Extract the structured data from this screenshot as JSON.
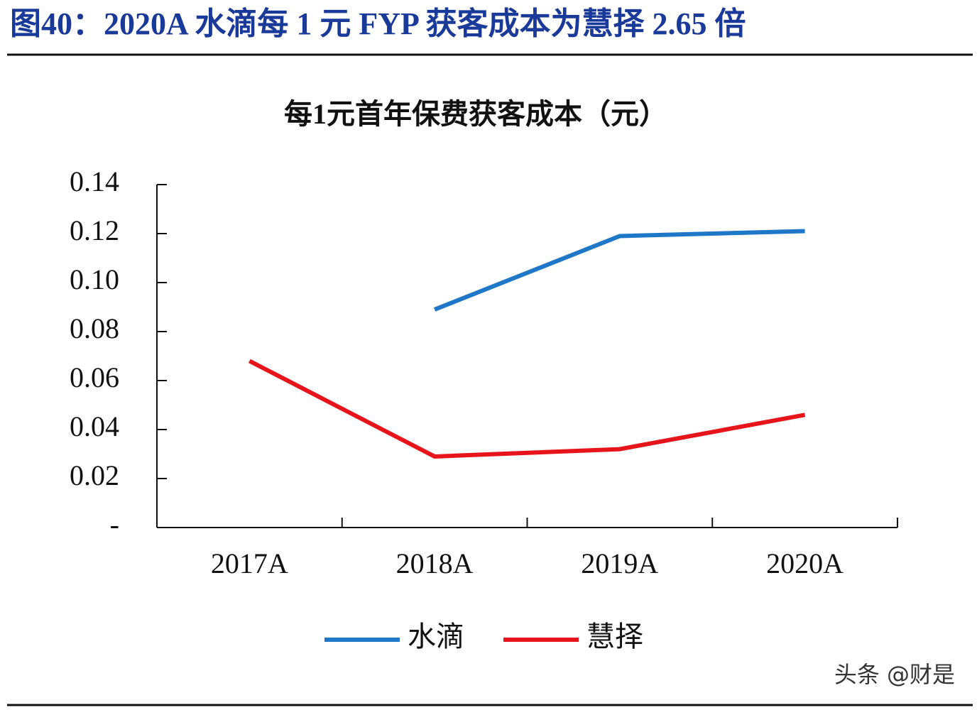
{
  "header": {
    "title": "图40：2020A 水滴每 1 元 FYP 获客成本为慧择 2.65 倍"
  },
  "chart_data": {
    "type": "line",
    "title": "每1元首年保费获客成本（元）",
    "categories": [
      "2017A",
      "2018A",
      "2019A",
      "2020A"
    ],
    "series": [
      {
        "name": "水滴",
        "color": "#1f77c8",
        "values": [
          null,
          0.089,
          0.119,
          0.121
        ]
      },
      {
        "name": "慧择",
        "color": "#e8141b",
        "values": [
          0.068,
          0.029,
          0.032,
          0.046
        ]
      }
    ],
    "ylim": [
      0,
      0.14
    ],
    "yticks": [
      {
        "value": 0,
        "label": "-"
      },
      0.02,
      0.04,
      0.06,
      0.08,
      {
        "value": 0.1,
        "label": "0.10"
      },
      0.12,
      0.14
    ],
    "grid": false,
    "legend": "bottom"
  },
  "watermark": "头条 @财是"
}
